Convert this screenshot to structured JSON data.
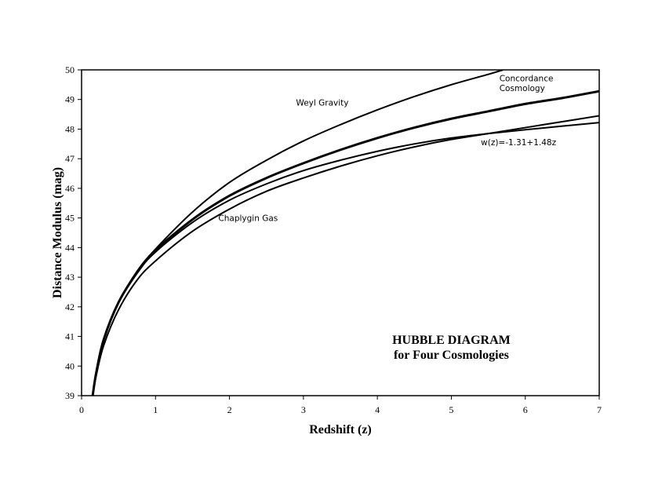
{
  "chart_data": {
    "type": "line",
    "title": "HUBBLE DIAGRAM",
    "subtitle": "for Four Cosmologies",
    "xlabel": "Redshift (z)",
    "ylabel": "Distance Modulus (mag)",
    "xlim": [
      0,
      7
    ],
    "ylim": [
      39,
      50
    ],
    "xticks": [
      0,
      1,
      2,
      3,
      4,
      5,
      6,
      7
    ],
    "yticks": [
      39,
      40,
      41,
      42,
      43,
      44,
      45,
      46,
      47,
      48,
      49,
      50
    ],
    "grid": false,
    "series": [
      {
        "name": "Weyl Gravity",
        "stroke_width": 2,
        "points": [
          [
            0.15,
            39.0
          ],
          [
            0.2,
            39.8
          ],
          [
            0.3,
            40.9
          ],
          [
            0.5,
            42.15
          ],
          [
            0.75,
            43.2
          ],
          [
            1.0,
            43.95
          ],
          [
            1.5,
            45.2
          ],
          [
            2.0,
            46.2
          ],
          [
            2.5,
            46.95
          ],
          [
            3.0,
            47.6
          ],
          [
            3.5,
            48.15
          ],
          [
            4.0,
            48.65
          ],
          [
            4.5,
            49.1
          ],
          [
            5.0,
            49.5
          ],
          [
            5.5,
            49.85
          ],
          [
            5.7,
            50.0
          ]
        ]
      },
      {
        "name": "Concordance Cosmology",
        "stroke_width": 3,
        "points": [
          [
            0.15,
            39.0
          ],
          [
            0.2,
            39.8
          ],
          [
            0.3,
            40.9
          ],
          [
            0.5,
            42.15
          ],
          [
            0.75,
            43.15
          ],
          [
            1.0,
            43.9
          ],
          [
            1.5,
            44.95
          ],
          [
            2.0,
            45.75
          ],
          [
            2.5,
            46.35
          ],
          [
            3.0,
            46.85
          ],
          [
            3.5,
            47.3
          ],
          [
            4.0,
            47.7
          ],
          [
            4.5,
            48.05
          ],
          [
            5.0,
            48.35
          ],
          [
            5.5,
            48.6
          ],
          [
            6.0,
            48.85
          ],
          [
            6.5,
            49.05
          ],
          [
            7.0,
            49.28
          ]
        ]
      },
      {
        "name": "w(z)=-1.31+1.48z",
        "stroke_width": 2,
        "points": [
          [
            0.15,
            39.0
          ],
          [
            0.2,
            39.8
          ],
          [
            0.3,
            40.9
          ],
          [
            0.5,
            42.15
          ],
          [
            0.75,
            43.15
          ],
          [
            1.0,
            43.85
          ],
          [
            1.5,
            44.85
          ],
          [
            2.0,
            45.6
          ],
          [
            2.5,
            46.15
          ],
          [
            3.0,
            46.6
          ],
          [
            3.5,
            46.95
          ],
          [
            4.0,
            47.25
          ],
          [
            4.5,
            47.5
          ],
          [
            5.0,
            47.7
          ],
          [
            5.5,
            47.85
          ],
          [
            6.0,
            47.98
          ],
          [
            6.5,
            48.1
          ],
          [
            7.0,
            48.22
          ]
        ]
      },
      {
        "name": "Chaplygin Gas",
        "stroke_width": 2,
        "points": [
          [
            0.15,
            39.0
          ],
          [
            0.2,
            39.7
          ],
          [
            0.3,
            40.7
          ],
          [
            0.5,
            41.9
          ],
          [
            0.75,
            42.9
          ],
          [
            1.0,
            43.55
          ],
          [
            1.5,
            44.55
          ],
          [
            2.0,
            45.3
          ],
          [
            2.5,
            45.9
          ],
          [
            3.0,
            46.35
          ],
          [
            3.5,
            46.75
          ],
          [
            4.0,
            47.1
          ],
          [
            4.5,
            47.4
          ],
          [
            5.0,
            47.65
          ],
          [
            5.5,
            47.85
          ],
          [
            6.0,
            48.05
          ],
          [
            6.5,
            48.25
          ],
          [
            7.0,
            48.45
          ]
        ]
      }
    ],
    "annotations": [
      {
        "text": "Weyl Gravity",
        "x": 2.9,
        "y": 48.8
      },
      {
        "text": "Concordance",
        "x": 5.65,
        "y": 49.62
      },
      {
        "text": "Cosmology",
        "x": 5.65,
        "y": 49.28
      },
      {
        "text": "w(z)=-1.31+1.48z",
        "x": 5.4,
        "y": 47.45
      },
      {
        "text": "Chaplygin Gas",
        "x": 1.85,
        "y": 44.9
      }
    ],
    "title_position": {
      "x": 5.0,
      "y": 40.75
    },
    "subtitle_position": {
      "x": 5.0,
      "y": 40.25
    }
  }
}
